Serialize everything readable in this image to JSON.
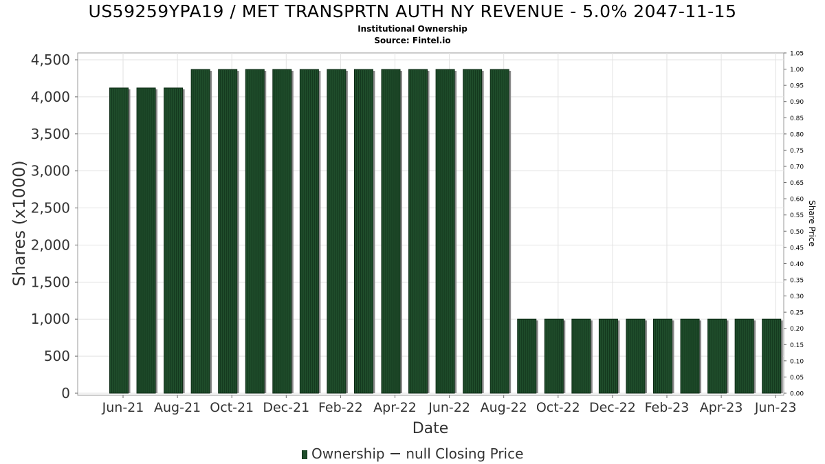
{
  "header": {
    "title": "US59259YPA19 / MET TRANSPRTN AUTH NY REVENUE - 5.0% 2047-11-15",
    "subtitle1": "Institutional Ownership",
    "subtitle2": "Source: Fintel.io"
  },
  "legend": {
    "ownership_label": "Ownership",
    "price_label": "null Closing Price"
  },
  "colors": {
    "bar_fill": "#1f4d2b",
    "bar_stripe": "#0c2914",
    "bar_shadow": "#8a8a8a",
    "grid": "#e2e2e2",
    "axis_text": "#333333"
  },
  "chart_data": {
    "type": "bar",
    "xlabel": "Date",
    "ylabel": "Shares (x1000)",
    "y2label": "Share Price",
    "ylim": [
      0,
      4600
    ],
    "y2lim": [
      0,
      1.05
    ],
    "yticks": [
      0,
      500,
      1000,
      1500,
      2000,
      2500,
      3000,
      3500,
      4000,
      4500
    ],
    "ytick_labels": [
      "0",
      "500",
      "1,000",
      "1,500",
      "2,000",
      "2,500",
      "3,000",
      "3,500",
      "4,000",
      "4,500"
    ],
    "y2ticks": [
      "0.00",
      "0.05",
      "0.10",
      "0.15",
      "0.20",
      "0.25",
      "0.30",
      "0.35",
      "0.40",
      "0.45",
      "0.50",
      "0.55",
      "0.60",
      "0.65",
      "0.70",
      "0.75",
      "0.80",
      "0.85",
      "0.90",
      "0.95",
      "1.00",
      "1.05"
    ],
    "xtick_labels": [
      "Jun-21",
      "Aug-21",
      "Oct-21",
      "Dec-21",
      "Feb-22",
      "Apr-22",
      "Jun-22",
      "Aug-22",
      "Oct-22",
      "Dec-22",
      "Feb-23",
      "Apr-23",
      "Jun-23"
    ],
    "grid": true,
    "legend_position": "bottom",
    "series": [
      {
        "name": "Ownership",
        "values": [
          4120,
          4120,
          4120,
          4370,
          4370,
          4370,
          4370,
          4370,
          4370,
          4370,
          4370,
          4370,
          4370,
          4370,
          4370,
          1000,
          1000,
          1000,
          1000,
          1000,
          1000,
          1000,
          1000,
          1000,
          1000
        ]
      }
    ]
  }
}
